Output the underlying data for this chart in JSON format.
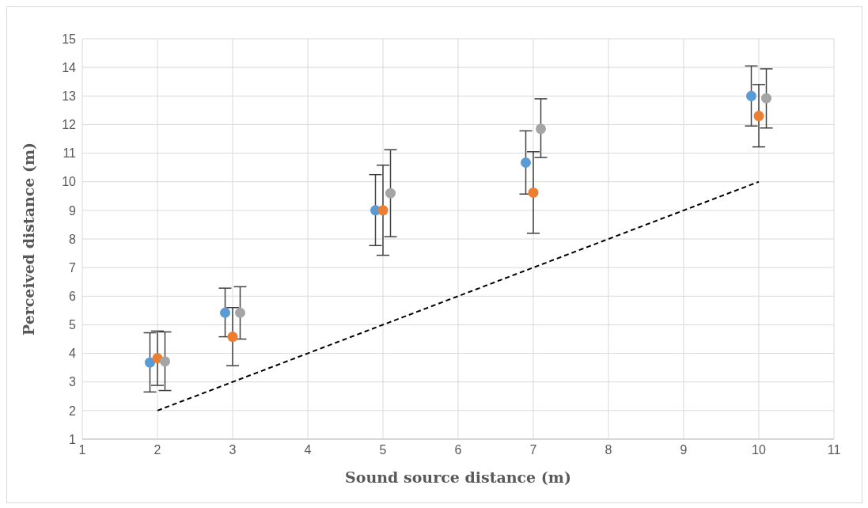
{
  "chart_data": {
    "type": "scatter",
    "xlabel": "Sound source distance (m)",
    "ylabel": "Perceived distance (m)",
    "xlim": [
      1,
      11
    ],
    "xticks": [
      1,
      2,
      3,
      4,
      5,
      6,
      7,
      8,
      9,
      10,
      11
    ],
    "ylim": [
      1,
      15
    ],
    "yticks": [
      1,
      2,
      3,
      4,
      5,
      6,
      7,
      8,
      9,
      10,
      11,
      12,
      13,
      14,
      15
    ],
    "grid": true,
    "legend": false,
    "marker": "circle",
    "series": [
      {
        "color": "#5b9bd5",
        "x": [
          1.9,
          2.9,
          4.9,
          6.9,
          9.9
        ],
        "values": [
          3.68,
          5.42,
          9.0,
          10.67,
          13.0
        ],
        "errors": [
          [
            2.65,
            4.72
          ],
          [
            4.58,
            6.28
          ],
          [
            7.77,
            10.25
          ],
          [
            9.57,
            11.78
          ],
          [
            11.95,
            14.05
          ]
        ]
      },
      {
        "color": "#ed7d31",
        "x": [
          2,
          3,
          5,
          7,
          10
        ],
        "values": [
          3.83,
          4.58,
          9.0,
          9.62,
          12.3
        ],
        "errors": [
          [
            2.88,
            4.78
          ],
          [
            3.57,
            5.6
          ],
          [
            7.43,
            10.58
          ],
          [
            8.2,
            11.05
          ],
          [
            11.22,
            13.4
          ]
        ]
      },
      {
        "color": "#a5a5a5",
        "x": [
          2.1,
          3.1,
          5.1,
          7.1,
          10.1
        ],
        "values": [
          3.72,
          5.42,
          9.6,
          11.85,
          12.92
        ],
        "errors": [
          [
            2.7,
            4.75
          ],
          [
            4.5,
            6.33
          ],
          [
            8.08,
            11.12
          ],
          [
            10.85,
            12.9
          ],
          [
            11.88,
            13.95
          ]
        ]
      },
      {
        "type": "line",
        "color": "#000000",
        "x": [
          2,
          10
        ],
        "values": [
          2,
          10
        ],
        "line_style": "dashed",
        "marker": "none"
      }
    ]
  }
}
